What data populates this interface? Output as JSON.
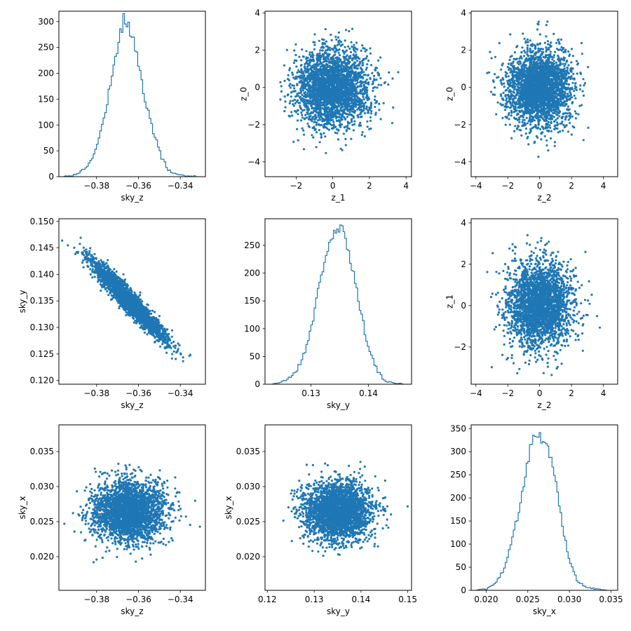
{
  "figure": {
    "series_color": "#1f77b4"
  },
  "chart_data": [
    {
      "id": "p00",
      "type": "histogram",
      "xlabel": "sky_z",
      "ylabel": "",
      "xlim": [
        -0.398,
        -0.328
      ],
      "ylim": [
        0,
        320
      ],
      "xticks": [
        -0.38,
        -0.36,
        -0.34
      ],
      "yticks": [
        0,
        50,
        100,
        150,
        200,
        250,
        300
      ],
      "x": [
        -0.395,
        -0.392,
        -0.389,
        -0.386,
        -0.383,
        -0.38,
        -0.377,
        -0.374,
        -0.371,
        -0.369,
        -0.368,
        -0.367,
        -0.366,
        -0.365,
        -0.364,
        -0.362,
        -0.36,
        -0.358,
        -0.355,
        -0.352,
        -0.349,
        -0.346,
        -0.343,
        -0.34,
        -0.336,
        -0.332
      ],
      "values": [
        1,
        2,
        6,
        15,
        28,
        55,
        105,
        165,
        230,
        275,
        285,
        305,
        298,
        300,
        280,
        262,
        220,
        170,
        120,
        75,
        38,
        15,
        6,
        3,
        1,
        1
      ]
    },
    {
      "id": "p01",
      "type": "scatter",
      "xlabel": "z_1",
      "ylabel": "z_0",
      "xlim": [
        -3.7,
        4.3
      ],
      "ylim": [
        -4.8,
        4.1
      ],
      "xticks": [
        -2,
        0,
        2,
        4
      ],
      "yticks": [
        -4,
        -2,
        0,
        2,
        4
      ],
      "distribution": {
        "mean_x": 0,
        "mean_y": 0,
        "sd_x": 1,
        "sd_y": 1,
        "corr": 0
      }
    },
    {
      "id": "p02",
      "type": "scatter",
      "xlabel": "z_2",
      "ylabel": "z_0",
      "xlim": [
        -4.3,
        4.9
      ],
      "ylim": [
        -4.8,
        4.1
      ],
      "xticks": [
        -4,
        -2,
        0,
        2,
        4
      ],
      "yticks": [
        -4,
        -2,
        0,
        2,
        4
      ],
      "distribution": {
        "mean_x": 0,
        "mean_y": 0,
        "sd_x": 1,
        "sd_y": 1,
        "corr": 0
      }
    },
    {
      "id": "p10",
      "type": "scatter",
      "xlabel": "sky_z",
      "ylabel": "sky_y",
      "xlim": [
        -0.398,
        -0.328
      ],
      "ylim": [
        0.1193,
        0.1505
      ],
      "xticks": [
        -0.38,
        -0.36,
        -0.34
      ],
      "yticks": [
        0.12,
        0.125,
        0.13,
        0.135,
        0.14,
        0.145,
        0.15
      ],
      "distribution": {
        "mean_x": -0.3645,
        "mean_y": 0.135,
        "sd_x": 0.0085,
        "sd_y": 0.0036,
        "corr": -0.95
      }
    },
    {
      "id": "p11",
      "type": "histogram",
      "xlabel": "sky_y",
      "ylabel": "",
      "xlim": [
        0.122,
        0.1475
      ],
      "ylim": [
        0,
        298
      ],
      "xticks": [
        0.13,
        0.14
      ],
      "yticks": [
        0,
        50,
        100,
        150,
        200,
        250
      ],
      "x": [
        0.1235,
        0.1245,
        0.1255,
        0.1265,
        0.1275,
        0.1285,
        0.1295,
        0.1305,
        0.1315,
        0.1325,
        0.1335,
        0.1345,
        0.135,
        0.1355,
        0.1365,
        0.1375,
        0.1385,
        0.1395,
        0.1405,
        0.1415,
        0.1425,
        0.1435,
        0.1445,
        0.146
      ],
      "values": [
        1,
        3,
        6,
        14,
        25,
        45,
        80,
        125,
        180,
        230,
        262,
        272,
        280,
        275,
        245,
        195,
        140,
        90,
        52,
        25,
        10,
        4,
        2,
        1
      ]
    },
    {
      "id": "p12",
      "type": "scatter",
      "xlabel": "z_2",
      "ylabel": "z_1",
      "xlim": [
        -4.3,
        4.9
      ],
      "ylim": [
        -3.8,
        4.2
      ],
      "xticks": [
        -4,
        -2,
        0,
        2,
        4
      ],
      "yticks": [
        -2,
        0,
        2,
        4
      ],
      "distribution": {
        "mean_x": 0,
        "mean_y": 0,
        "sd_x": 1,
        "sd_y": 1,
        "corr": 0
      }
    },
    {
      "id": "p20",
      "type": "scatter",
      "xlabel": "sky_z",
      "ylabel": "sky_x",
      "xlim": [
        -0.398,
        -0.328
      ],
      "ylim": [
        0.0152,
        0.0388
      ],
      "xticks": [
        -0.38,
        -0.36,
        -0.34
      ],
      "yticks": [
        0.02,
        0.025,
        0.03,
        0.035
      ],
      "distribution": {
        "mean_x": -0.3645,
        "mean_y": 0.0265,
        "sd_x": 0.0085,
        "sd_y": 0.0021,
        "corr": 0
      }
    },
    {
      "id": "p21",
      "type": "scatter",
      "xlabel": "sky_y",
      "ylabel": "sky_x",
      "xlim": [
        0.1195,
        0.1508
      ],
      "ylim": [
        0.0152,
        0.0388
      ],
      "xticks": [
        0.12,
        0.13,
        0.14,
        0.15
      ],
      "yticks": [
        0.02,
        0.025,
        0.03,
        0.035
      ],
      "distribution": {
        "mean_x": 0.135,
        "mean_y": 0.0265,
        "sd_x": 0.0036,
        "sd_y": 0.0021,
        "corr": 0
      }
    },
    {
      "id": "p22",
      "type": "histogram",
      "xlabel": "sky_x",
      "ylabel": "",
      "xlim": [
        0.0182,
        0.0358
      ],
      "ylim": [
        0,
        358
      ],
      "xticks": [
        0.02,
        0.025,
        0.03,
        0.035
      ],
      "yticks": [
        0,
        50,
        100,
        150,
        200,
        250,
        300,
        350
      ],
      "x": [
        0.019,
        0.02,
        0.021,
        0.022,
        0.023,
        0.024,
        0.025,
        0.0255,
        0.026,
        0.0265,
        0.027,
        0.0275,
        0.028,
        0.0285,
        0.029,
        0.0295,
        0.03,
        0.0305,
        0.031,
        0.032,
        0.033,
        0.0345
      ],
      "values": [
        1,
        3,
        15,
        40,
        95,
        180,
        280,
        320,
        340,
        330,
        320,
        300,
        265,
        220,
        160,
        110,
        70,
        40,
        20,
        8,
        3,
        1
      ]
    }
  ]
}
